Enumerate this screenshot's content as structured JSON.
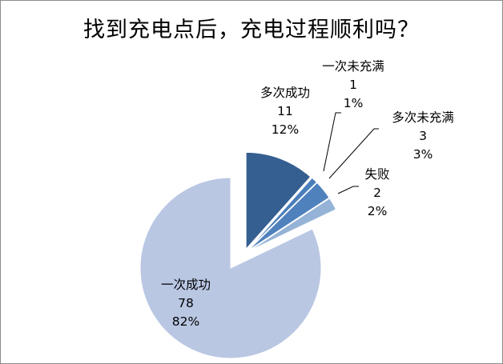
{
  "chart_data": {
    "type": "pie",
    "title": "找到充电点后，充电过程顺利吗？",
    "slices": [
      {
        "name": "多次成功",
        "value": 11,
        "percent": "12%",
        "color": "#365f91"
      },
      {
        "name": "一次未充满",
        "value": 1,
        "percent": "1%",
        "color": "#4a7ebb"
      },
      {
        "name": "多次未充满",
        "value": 3,
        "percent": "3%",
        "color": "#4f81bd"
      },
      {
        "name": "失败",
        "value": 2,
        "percent": "2%",
        "color": "#95b3d7"
      },
      {
        "name": "一次成功",
        "value": 78,
        "percent": "82%",
        "color": "#b9c7e3"
      }
    ],
    "legend": "none",
    "grid": false
  }
}
